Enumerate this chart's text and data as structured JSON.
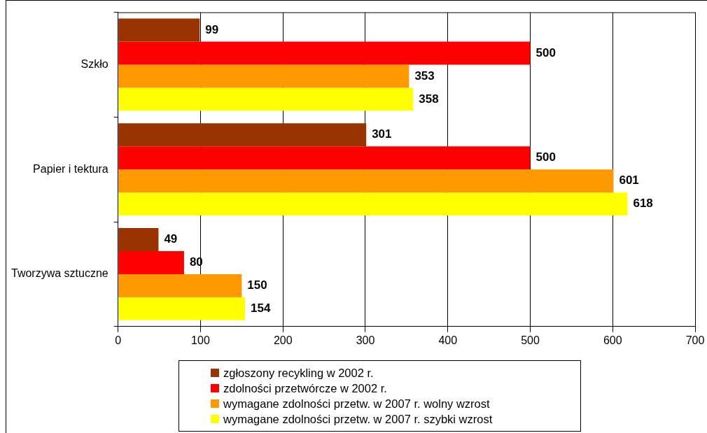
{
  "chart_data": {
    "type": "bar",
    "orientation": "horizontal",
    "categories": [
      "Szkło",
      "Papier i tektura",
      "Tworzywa sztuczne"
    ],
    "series": [
      {
        "name": "zgłoszony recykling w 2002 r.",
        "color": "#993300",
        "values": [
          99,
          301,
          49
        ]
      },
      {
        "name": "zdolności przetwórcze w 2002 r.",
        "color": "#ff0000",
        "values": [
          500,
          500,
          80
        ]
      },
      {
        "name": "wymagane zdolności przetw. w 2007 r. wolny wzrost",
        "color": "#ff9900",
        "values": [
          353,
          601,
          150
        ]
      },
      {
        "name": "wymagane zdolności przetw. w 2007 r. szybki wzrost",
        "color": "#ffff00",
        "values": [
          358,
          618,
          154
        ]
      }
    ],
    "xlim": [
      0,
      700
    ],
    "xticks": [
      0,
      100,
      200,
      300,
      400,
      500,
      600,
      700
    ],
    "grid": "x",
    "legend": "bottom",
    "data_labels": true
  }
}
